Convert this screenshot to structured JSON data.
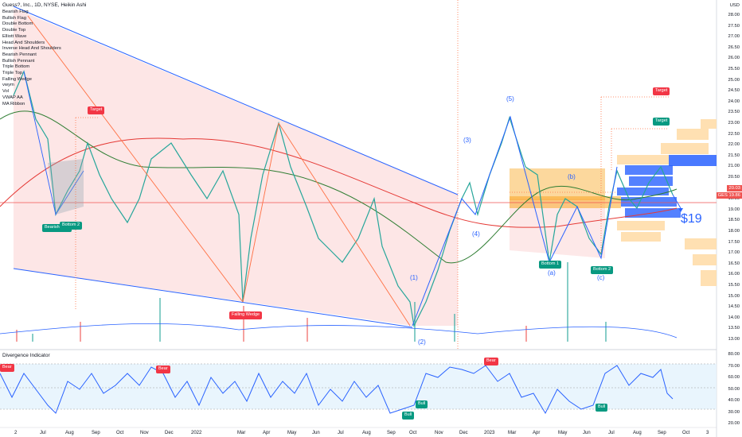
{
  "header": {
    "title": "Guess?, Inc., 1D, NYSE, Heikin Ashi"
  },
  "indicators": [
    "Bearish Flag",
    "Bullish Flag",
    "Double Bottom",
    "Double Top",
    "Elliott Wave",
    "Head And Shoulders",
    "Inverse Head And Shoulders",
    "Bearish Pennant",
    "Bullish Pennant",
    "Triple Bottom",
    "Triple Top",
    "Falling Wedge",
    "vwym",
    "Vol",
    "VWAP AA",
    "MA Ribbon"
  ],
  "currency": "USD",
  "price_axis": [
    "28.00",
    "27.50",
    "27.00",
    "26.50",
    "26.00",
    "25.50",
    "25.00",
    "24.50",
    "24.00",
    "23.50",
    "23.00",
    "22.50",
    "22.00",
    "21.50",
    "21.00",
    "20.50",
    "20.00",
    "19.50",
    "19.00",
    "18.50",
    "18.00",
    "17.50",
    "17.00",
    "16.50",
    "16.00",
    "15.50",
    "15.00",
    "14.50",
    "14.00",
    "13.50",
    "13.00"
  ],
  "last_price": {
    "value": "20.03",
    "ticker_price": "GES 19.86"
  },
  "time_axis": [
    "2",
    "Jul",
    "Aug",
    "Sep",
    "Oct",
    "Nov",
    "Dec",
    "2022",
    "Mar",
    "Apr",
    "May",
    "Jun",
    "Jul",
    "Aug",
    "Sep",
    "Oct",
    "Nov",
    "Dec",
    "2023",
    "Mar",
    "Apr",
    "May",
    "Jun",
    "Jul",
    "Aug",
    "Sep",
    "Oct",
    "3"
  ],
  "annotations": {
    "target1": "Target",
    "target2": "Target",
    "target3": "Target",
    "bearish_flag": "Bearish Flag",
    "bottom2_left": "Bottom 2",
    "falling_wedge": "Falling Wedge",
    "bottom1": "Bottom 1",
    "bottom2": "Bottom 2",
    "price_target": "$19"
  },
  "waves": {
    "w1": "(1)",
    "w2": "(2)",
    "w3": "(3)",
    "w4": "(4)",
    "w5": "(5)",
    "wa": "(a)",
    "wb": "(b)",
    "wc": "(c)"
  },
  "oscillator": {
    "title": "Divergence Indicator",
    "axis": [
      "80.00",
      "70.00",
      "60.00",
      "50.00",
      "40.00",
      "30.00",
      "20.00"
    ],
    "badges": {
      "bear1": "Bear",
      "bear2": "Bear",
      "bear3": "Bear",
      "bull1": "Bull",
      "bull2": "Bull",
      "bull3": "Bull"
    }
  },
  "colors": {
    "bull": "#26a69a",
    "bear": "#ef5350",
    "trendline": "#2962ff",
    "wedge_fill": "#fcdede",
    "target": "#f23645",
    "green_badge": "#089981"
  }
}
